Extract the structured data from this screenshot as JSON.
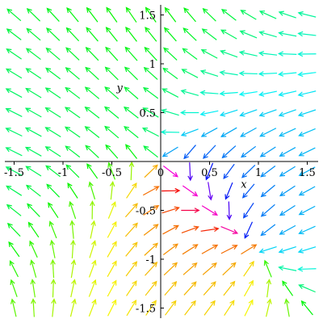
{
  "chart_data": {
    "type": "vector-field",
    "xlim": [
      -1.6,
      1.6
    ],
    "ylim": [
      -1.6,
      1.6
    ],
    "xlabel": "x",
    "ylabel": "y",
    "x_ticks": [
      {
        "value": -1.5,
        "label": "-1.5"
      },
      {
        "value": -1,
        "label": "-1"
      },
      {
        "value": -0.5,
        "label": "-0.5"
      },
      {
        "value": 0,
        "label": "0"
      },
      {
        "value": 0.5,
        "label": "0.5"
      },
      {
        "value": 1,
        "label": "1"
      },
      {
        "value": 1.5,
        "label": "1.5"
      }
    ],
    "y_ticks": [
      {
        "value": 1.5,
        "label": "1.5"
      },
      {
        "value": 1,
        "label": "1"
      },
      {
        "value": 0.5,
        "label": "0.5"
      },
      {
        "value": -0.5,
        "label": "-0.5"
      },
      {
        "value": -1,
        "label": "-1"
      },
      {
        "value": -1.5,
        "label": "-1.5"
      }
    ],
    "grid": false,
    "arrow_grid": {
      "x_range": [
        -1.6,
        1.6
      ],
      "y_range": [
        -1.6,
        1.6
      ],
      "count": 16
    },
    "coloring": "rainbow by arrow direction"
  }
}
